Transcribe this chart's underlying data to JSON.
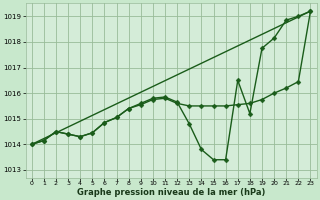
{
  "background_color": "#c8e8cc",
  "plot_bg_color": "#d4ecd8",
  "grid_color": "#99bb99",
  "line_color": "#1a5c1a",
  "marker_color": "#1a5c1a",
  "xlabel": "Graphe pression niveau de la mer (hPa)",
  "xlim": [
    -0.5,
    23.5
  ],
  "ylim": [
    1012.7,
    1019.5
  ],
  "yticks": [
    1013,
    1014,
    1015,
    1016,
    1017,
    1018,
    1019
  ],
  "xticks": [
    0,
    1,
    2,
    3,
    4,
    5,
    6,
    7,
    8,
    9,
    10,
    11,
    12,
    13,
    14,
    15,
    16,
    17,
    18,
    19,
    20,
    21,
    22,
    23
  ],
  "series1_x": [
    0,
    1,
    2,
    3,
    4,
    5,
    6,
    7,
    8,
    9,
    10,
    11,
    12,
    13,
    14,
    15,
    16,
    17,
    18,
    19,
    20,
    21,
    22,
    23
  ],
  "series1_y": [
    1014.0,
    1014.15,
    1014.5,
    1014.4,
    1014.3,
    1014.45,
    1014.85,
    1015.05,
    1015.4,
    1015.6,
    1015.8,
    1015.85,
    1015.65,
    1014.8,
    1013.8,
    1013.4,
    1013.4,
    1016.5,
    1015.2,
    1017.75,
    1018.15,
    1018.85,
    1019.0,
    1019.2
  ],
  "series2_x": [
    0,
    1,
    2,
    3,
    4,
    5,
    6,
    7,
    8,
    9,
    10,
    11,
    12,
    13,
    14,
    15,
    16,
    17,
    18,
    19,
    20,
    21,
    22,
    23
  ],
  "series2_y": [
    1014.0,
    1014.15,
    1014.5,
    1014.4,
    1014.3,
    1014.45,
    1014.85,
    1015.05,
    1015.4,
    1015.55,
    1015.75,
    1015.8,
    1015.6,
    1015.5,
    1015.5,
    1015.5,
    1015.5,
    1015.55,
    1015.6,
    1015.75,
    1016.0,
    1016.2,
    1016.45,
    1019.2
  ],
  "series3_x": [
    0,
    23
  ],
  "series3_y": [
    1014.0,
    1019.2
  ],
  "marker_size": 2.5,
  "linewidth": 1.0
}
